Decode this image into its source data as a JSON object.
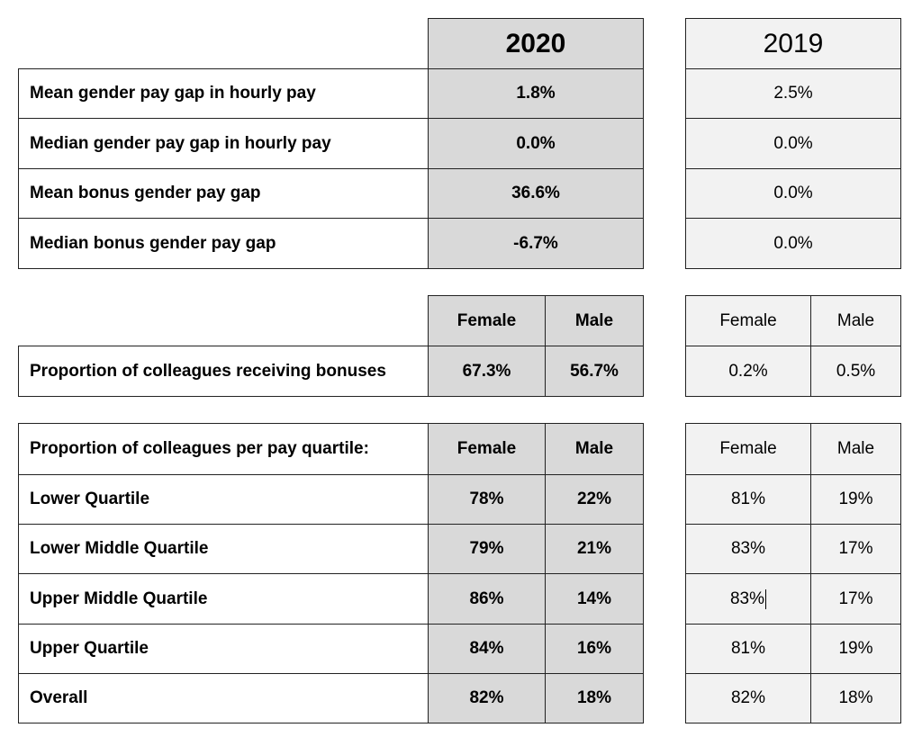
{
  "years": {
    "current": "2020",
    "previous": "2019"
  },
  "gaps": [
    {
      "label": "Mean gender pay gap in hourly pay",
      "y2020": "1.8%",
      "y2019": "2.5%"
    },
    {
      "label": "Median gender pay gap in hourly pay",
      "y2020": "0.0%",
      "y2019": "0.0%"
    },
    {
      "label": "Mean bonus gender pay gap",
      "y2020": "36.6%",
      "y2019": "0.0%"
    },
    {
      "label": "Median bonus gender pay gap",
      "y2020": "-6.7%",
      "y2019": "0.0%"
    }
  ],
  "bonus": {
    "col_female": "Female",
    "col_male": "Male",
    "label": "Proportion of colleagues receiving bonuses",
    "f2020": "67.3%",
    "m2020": "56.7%",
    "f2019": "0.2%",
    "m2019": "0.5%"
  },
  "quartiles": {
    "title": "Proportion of colleagues per pay quartile:",
    "col_female": "Female",
    "col_male": "Male",
    "rows": [
      {
        "label": "Lower Quartile",
        "f2020": "78%",
        "m2020": "22%",
        "f2019": "81%",
        "m2019": "19%"
      },
      {
        "label": "Lower Middle Quartile",
        "f2020": "79%",
        "m2020": "21%",
        "f2019": "83%",
        "m2019": "17%"
      },
      {
        "label": "Upper Middle Quartile",
        "f2020": "86%",
        "m2020": "14%",
        "f2019": "83%",
        "m2019": "17%"
      },
      {
        "label": "Upper Quartile",
        "f2020": "84%",
        "m2020": "16%",
        "f2019": "81%",
        "m2019": "19%"
      },
      {
        "label": "Overall",
        "f2020": "82%",
        "m2020": "18%",
        "f2019": "82%",
        "m2019": "18%"
      }
    ]
  }
}
